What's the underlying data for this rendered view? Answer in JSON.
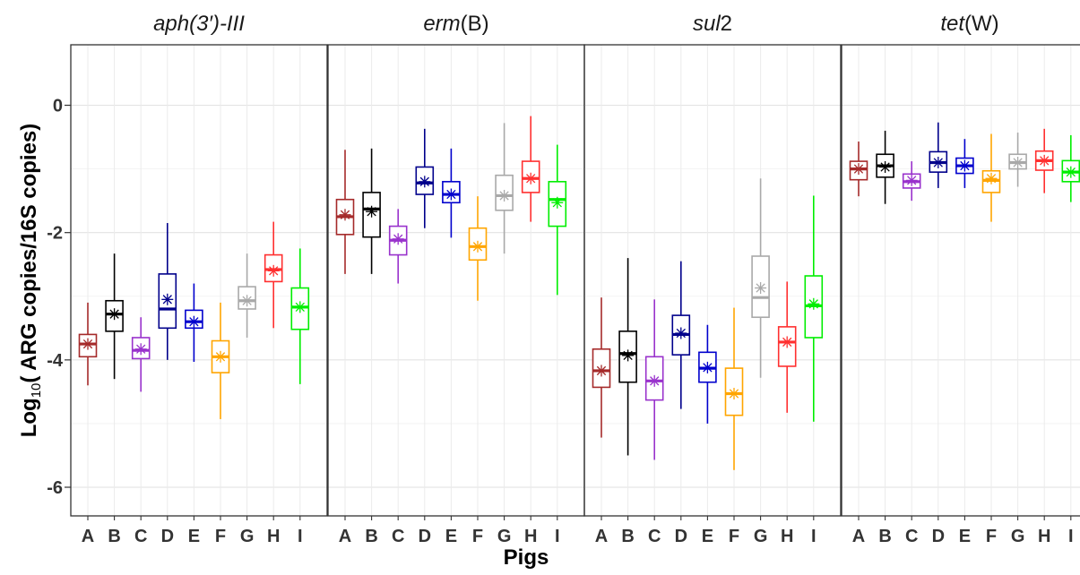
{
  "chart_data": {
    "type": "boxplot",
    "ylabel": "Log10( ARG copies/16S copies)",
    "xlabel": "Pigs",
    "ylim": [
      -6.45,
      0.95
    ],
    "yticks": [
      0,
      -2,
      -4,
      -6
    ],
    "grid": true,
    "categories": [
      "A",
      "B",
      "C",
      "D",
      "E",
      "F",
      "G",
      "H",
      "I"
    ],
    "colors": [
      "#a52a2a",
      "#000000",
      "#9932cc",
      "#00008b",
      "#0000cd",
      "#ffa500",
      "#a9a9a9",
      "#ff3030",
      "#00ee00"
    ],
    "panels": [
      {
        "title_parts": [
          [
            "aph(3′)-III",
            "italic"
          ]
        ],
        "boxes": [
          {
            "min": -4.4,
            "q1": -3.95,
            "median": -3.75,
            "q3": -3.6,
            "max": -3.1,
            "mean": -3.75
          },
          {
            "min": -4.3,
            "q1": -3.55,
            "median": -3.28,
            "q3": -3.07,
            "max": -2.33,
            "mean": -3.28
          },
          {
            "min": -4.5,
            "q1": -3.98,
            "median": -3.85,
            "q3": -3.65,
            "max": -3.33,
            "mean": -3.83
          },
          {
            "min": -4.0,
            "q1": -3.5,
            "median": -3.2,
            "q3": -2.65,
            "max": -1.85,
            "mean": -3.05
          },
          {
            "min": -4.03,
            "q1": -3.5,
            "median": -3.4,
            "q3": -3.22,
            "max": -2.8,
            "mean": -3.4
          },
          {
            "min": -4.93,
            "q1": -4.2,
            "median": -3.95,
            "q3": -3.7,
            "max": -3.1,
            "mean": -3.95
          },
          {
            "min": -3.65,
            "q1": -3.2,
            "median": -3.07,
            "q3": -2.85,
            "max": -2.33,
            "mean": -3.07
          },
          {
            "min": -3.5,
            "q1": -2.77,
            "median": -2.58,
            "q3": -2.35,
            "max": -1.83,
            "mean": -2.6
          },
          {
            "min": -4.38,
            "q1": -3.52,
            "median": -3.17,
            "q3": -2.87,
            "max": -2.25,
            "mean": -3.17
          }
        ]
      },
      {
        "title_parts": [
          [
            "erm",
            "italic"
          ],
          [
            "(B)",
            "normal"
          ]
        ],
        "boxes": [
          {
            "min": -2.65,
            "q1": -2.03,
            "median": -1.75,
            "q3": -1.48,
            "max": -0.7,
            "mean": -1.72
          },
          {
            "min": -2.65,
            "q1": -2.07,
            "median": -1.63,
            "q3": -1.37,
            "max": -0.68,
            "mean": -1.67
          },
          {
            "min": -2.8,
            "q1": -2.35,
            "median": -2.12,
            "q3": -1.9,
            "max": -1.63,
            "mean": -2.1
          },
          {
            "min": -1.93,
            "q1": -1.4,
            "median": -1.22,
            "q3": -0.97,
            "max": -0.37,
            "mean": -1.2
          },
          {
            "min": -2.08,
            "q1": -1.53,
            "median": -1.4,
            "q3": -1.2,
            "max": -0.68,
            "mean": -1.4
          },
          {
            "min": -3.07,
            "q1": -2.43,
            "median": -2.22,
            "q3": -1.93,
            "max": -1.43,
            "mean": -2.22
          },
          {
            "min": -2.33,
            "q1": -1.65,
            "median": -1.42,
            "q3": -1.1,
            "max": -0.28,
            "mean": -1.42
          },
          {
            "min": -1.83,
            "q1": -1.37,
            "median": -1.15,
            "q3": -0.88,
            "max": -0.17,
            "mean": -1.15
          },
          {
            "min": -2.98,
            "q1": -1.9,
            "median": -1.48,
            "q3": -1.2,
            "max": -0.62,
            "mean": -1.53
          }
        ]
      },
      {
        "title_parts": [
          [
            "sul",
            "italic"
          ],
          [
            "2",
            "normal"
          ]
        ],
        "boxes": [
          {
            "min": -5.22,
            "q1": -4.43,
            "median": -4.17,
            "q3": -3.83,
            "max": -3.02,
            "mean": -4.17
          },
          {
            "min": -5.5,
            "q1": -4.35,
            "median": -3.9,
            "q3": -3.55,
            "max": -2.4,
            "mean": -3.93
          },
          {
            "min": -5.57,
            "q1": -4.63,
            "median": -4.33,
            "q3": -3.95,
            "max": -3.05,
            "mean": -4.33
          },
          {
            "min": -4.77,
            "q1": -3.92,
            "median": -3.6,
            "q3": -3.3,
            "max": -2.45,
            "mean": -3.58
          },
          {
            "min": -5.0,
            "q1": -4.35,
            "median": -4.13,
            "q3": -3.88,
            "max": -3.45,
            "mean": -4.12
          },
          {
            "min": -5.73,
            "q1": -4.87,
            "median": -4.53,
            "q3": -4.13,
            "max": -3.18,
            "mean": -4.53
          },
          {
            "min": -4.28,
            "q1": -3.33,
            "median": -3.02,
            "q3": -2.37,
            "max": -1.15,
            "mean": -2.87
          },
          {
            "min": -4.83,
            "q1": -4.1,
            "median": -3.72,
            "q3": -3.48,
            "max": -2.77,
            "mean": -3.72
          },
          {
            "min": -4.97,
            "q1": -3.65,
            "median": -3.15,
            "q3": -2.68,
            "max": -1.42,
            "mean": -3.12
          }
        ]
      },
      {
        "title_parts": [
          [
            "tet",
            "italic"
          ],
          [
            "(W)",
            "normal"
          ]
        ],
        "boxes": [
          {
            "min": -1.43,
            "q1": -1.17,
            "median": -1.0,
            "q3": -0.88,
            "max": -0.57,
            "mean": -1.0
          },
          {
            "min": -1.55,
            "q1": -1.13,
            "median": -0.95,
            "q3": -0.77,
            "max": -0.4,
            "mean": -0.97
          },
          {
            "min": -1.5,
            "q1": -1.3,
            "median": -1.2,
            "q3": -1.08,
            "max": -0.88,
            "mean": -1.18
          },
          {
            "min": -1.3,
            "q1": -1.05,
            "median": -0.9,
            "q3": -0.73,
            "max": -0.27,
            "mean": -0.9
          },
          {
            "min": -1.3,
            "q1": -1.07,
            "median": -0.95,
            "q3": -0.83,
            "max": -0.53,
            "mean": -0.95
          },
          {
            "min": -1.83,
            "q1": -1.37,
            "median": -1.18,
            "q3": -1.03,
            "max": -0.45,
            "mean": -1.15
          },
          {
            "min": -1.28,
            "q1": -1.0,
            "median": -0.9,
            "q3": -0.77,
            "max": -0.43,
            "mean": -0.9
          },
          {
            "min": -1.38,
            "q1": -1.02,
            "median": -0.87,
            "q3": -0.72,
            "max": -0.37,
            "mean": -0.87
          },
          {
            "min": -1.52,
            "q1": -1.2,
            "median": -1.05,
            "q3": -0.87,
            "max": -0.47,
            "mean": -1.05
          }
        ]
      }
    ]
  }
}
